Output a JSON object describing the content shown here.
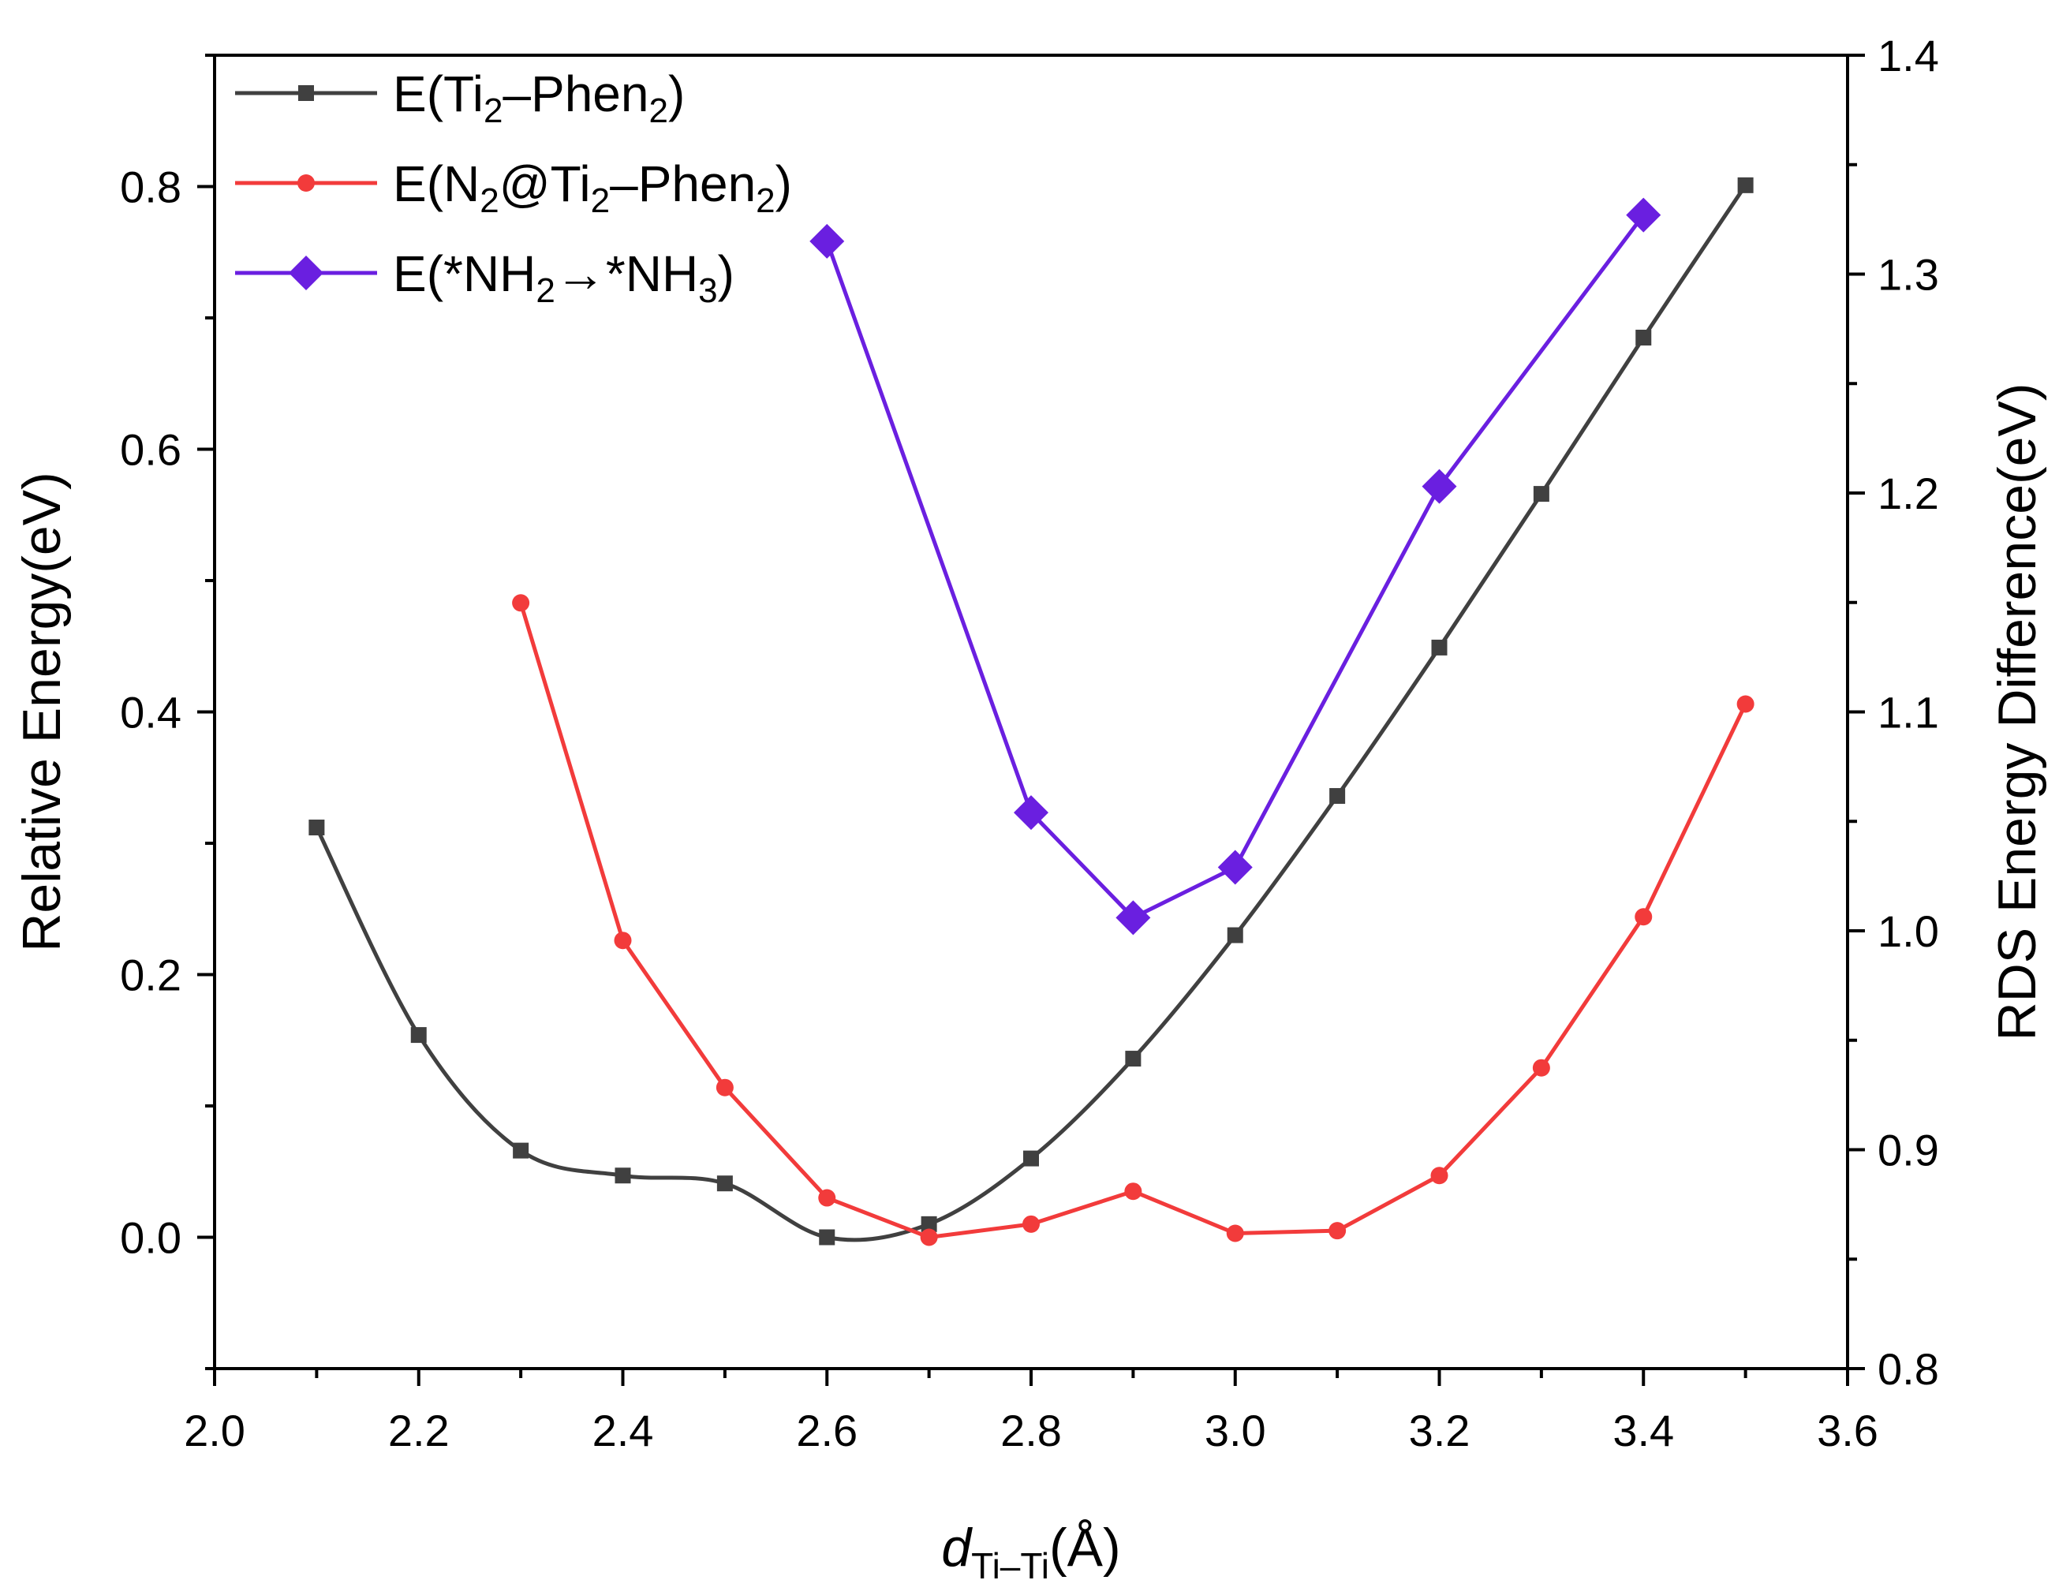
{
  "chart_data": {
    "type": "line",
    "xlabel": {
      "main": "d",
      "sub": "Ti–Ti",
      "suffix": "(Å)"
    },
    "ylabel_left": "Relative Energy(eV)",
    "ylabel_right": "RDS Energy Difference(eV)",
    "xlim": [
      2.0,
      3.6
    ],
    "ylim_left": [
      -0.1,
      0.9
    ],
    "ylim_right": [
      0.8,
      1.4
    ],
    "x_ticks": [
      "2.0",
      "2.2",
      "2.4",
      "2.6",
      "2.8",
      "3.0",
      "3.2",
      "3.4",
      "3.6"
    ],
    "y_ticks_left": [
      "0.0",
      "0.2",
      "0.4",
      "0.6",
      "0.8"
    ],
    "y_ticks_right": [
      "0.8",
      "0.9",
      "1.0",
      "1.1",
      "1.2",
      "1.3",
      "1.4"
    ],
    "grid": false,
    "legend_position": "top-left",
    "series": [
      {
        "name_parts": [
          [
            "E(Ti",
            ""
          ],
          [
            "2",
            "sub"
          ],
          [
            "–Phen",
            ""
          ],
          [
            "2",
            "sub"
          ],
          [
            ")",
            ""
          ]
        ],
        "axis": "left",
        "color": "#404040",
        "marker": "square",
        "smooth": true,
        "x": [
          2.1,
          2.2,
          2.3,
          2.4,
          2.5,
          2.6,
          2.7,
          2.8,
          2.9,
          3.0,
          3.1,
          3.2,
          3.3,
          3.4,
          3.5
        ],
        "y": [
          0.312,
          0.154,
          0.066,
          0.047,
          0.041,
          0.0,
          0.01,
          0.06,
          0.136,
          0.23,
          0.336,
          0.449,
          0.566,
          0.685,
          0.801
        ]
      },
      {
        "name_parts": [
          [
            "E(N",
            ""
          ],
          [
            "2",
            "sub"
          ],
          [
            "@Ti",
            ""
          ],
          [
            "2",
            "sub"
          ],
          [
            "–Phen",
            ""
          ],
          [
            "2",
            "sub"
          ],
          [
            ")",
            ""
          ]
        ],
        "axis": "left",
        "color": "#f23b3b",
        "marker": "circle",
        "smooth": false,
        "x": [
          2.3,
          2.4,
          2.5,
          2.6,
          2.7,
          2.8,
          2.9,
          3.0,
          3.1,
          3.2,
          3.3,
          3.4,
          3.5
        ],
        "y": [
          0.483,
          0.226,
          0.114,
          0.03,
          0.0,
          0.01,
          0.035,
          0.003,
          0.005,
          0.047,
          0.129,
          0.244,
          0.406
        ]
      },
      {
        "name_parts": [
          [
            "E(*NH",
            ""
          ],
          [
            "2",
            "sub"
          ],
          [
            "→*NH",
            ""
          ],
          [
            "3",
            "sub"
          ],
          [
            ")",
            ""
          ]
        ],
        "axis": "right",
        "color": "#6a1fe0",
        "marker": "diamond",
        "smooth": false,
        "x": [
          2.6,
          2.8,
          2.9,
          3.0,
          3.2,
          3.4
        ],
        "y": [
          1.315,
          1.054,
          1.006,
          1.029,
          1.203,
          1.327
        ]
      }
    ]
  }
}
